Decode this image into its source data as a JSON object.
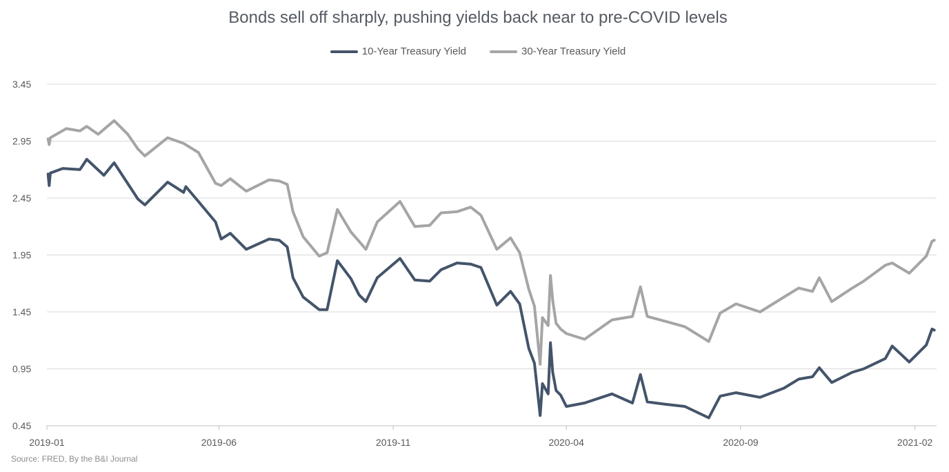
{
  "source_note": "Source: FRED, By the B&I Journal",
  "chart_data": {
    "type": "line",
    "title": "Bonds sell off sharply, pushing yields back near to pre-COVID levels",
    "xlabel": "",
    "ylabel": "",
    "legend_position": "top-center",
    "grid": true,
    "ylim": [
      0.45,
      3.45
    ],
    "yticks": [
      "3.45",
      "2.95",
      "2.45",
      "1.95",
      "1.45",
      "0.95",
      "0.45"
    ],
    "xlim": [
      "2019-01",
      "2021-02"
    ],
    "xticks": [
      "2019-01",
      "2019-06",
      "2019-11",
      "2020-04",
      "2020-09",
      "2021-02"
    ],
    "series": [
      {
        "name": "10-Year Treasury Yield",
        "color": "#44546a",
        "points": [
          [
            "2019-01-02",
            2.66
          ],
          [
            "2019-01-03",
            2.56
          ],
          [
            "2019-01-04",
            2.67
          ],
          [
            "2019-01-15",
            2.71
          ],
          [
            "2019-01-30",
            2.7
          ],
          [
            "2019-02-05",
            2.79
          ],
          [
            "2019-02-20",
            2.65
          ],
          [
            "2019-03-01",
            2.76
          ],
          [
            "2019-03-22",
            2.44
          ],
          [
            "2019-03-28",
            2.39
          ],
          [
            "2019-04-17",
            2.59
          ],
          [
            "2019-05-01",
            2.5
          ],
          [
            "2019-05-03",
            2.55
          ],
          [
            "2019-05-14",
            2.42
          ],
          [
            "2019-05-29",
            2.24
          ],
          [
            "2019-06-03",
            2.09
          ],
          [
            "2019-06-11",
            2.14
          ],
          [
            "2019-06-25",
            2.0
          ],
          [
            "2019-07-15",
            2.09
          ],
          [
            "2019-07-24",
            2.08
          ],
          [
            "2019-07-31",
            2.02
          ],
          [
            "2019-08-05",
            1.75
          ],
          [
            "2019-08-14",
            1.58
          ],
          [
            "2019-08-28",
            1.47
          ],
          [
            "2019-09-04",
            1.47
          ],
          [
            "2019-09-13",
            1.9
          ],
          [
            "2019-09-25",
            1.74
          ],
          [
            "2019-10-02",
            1.6
          ],
          [
            "2019-10-08",
            1.54
          ],
          [
            "2019-10-18",
            1.75
          ],
          [
            "2019-11-07",
            1.92
          ],
          [
            "2019-11-20",
            1.73
          ],
          [
            "2019-12-03",
            1.72
          ],
          [
            "2019-12-13",
            1.82
          ],
          [
            "2019-12-27",
            1.88
          ],
          [
            "2020-01-08",
            1.87
          ],
          [
            "2020-01-17",
            1.84
          ],
          [
            "2020-01-31",
            1.51
          ],
          [
            "2020-02-12",
            1.63
          ],
          [
            "2020-02-20",
            1.52
          ],
          [
            "2020-02-28",
            1.13
          ],
          [
            "2020-03-04",
            1.0
          ],
          [
            "2020-03-09",
            0.54
          ],
          [
            "2020-03-11",
            0.82
          ],
          [
            "2020-03-16",
            0.73
          ],
          [
            "2020-03-18",
            1.18
          ],
          [
            "2020-03-20",
            0.92
          ],
          [
            "2020-03-23",
            0.76
          ],
          [
            "2020-03-27",
            0.72
          ],
          [
            "2020-04-01",
            0.62
          ],
          [
            "2020-04-17",
            0.65
          ],
          [
            "2020-05-11",
            0.73
          ],
          [
            "2020-05-29",
            0.65
          ],
          [
            "2020-06-05",
            0.9
          ],
          [
            "2020-06-11",
            0.66
          ],
          [
            "2020-06-26",
            0.64
          ],
          [
            "2020-07-14",
            0.62
          ],
          [
            "2020-08-04",
            0.52
          ],
          [
            "2020-08-14",
            0.71
          ],
          [
            "2020-08-28",
            0.74
          ],
          [
            "2020-09-18",
            0.7
          ],
          [
            "2020-10-09",
            0.78
          ],
          [
            "2020-10-22",
            0.86
          ],
          [
            "2020-11-03",
            0.88
          ],
          [
            "2020-11-09",
            0.96
          ],
          [
            "2020-11-20",
            0.83
          ],
          [
            "2020-12-08",
            0.92
          ],
          [
            "2020-12-18",
            0.95
          ],
          [
            "2021-01-06",
            1.04
          ],
          [
            "2021-01-12",
            1.15
          ],
          [
            "2021-01-27",
            1.01
          ],
          [
            "2021-02-11",
            1.16
          ],
          [
            "2021-02-16",
            1.3
          ],
          [
            "2021-02-18",
            1.29
          ]
        ]
      },
      {
        "name": "30-Year Treasury Yield",
        "color": "#a5a5a5",
        "points": [
          [
            "2019-01-02",
            2.97
          ],
          [
            "2019-01-03",
            2.92
          ],
          [
            "2019-01-04",
            2.98
          ],
          [
            "2019-01-18",
            3.06
          ],
          [
            "2019-01-30",
            3.04
          ],
          [
            "2019-02-05",
            3.08
          ],
          [
            "2019-02-15",
            3.01
          ],
          [
            "2019-03-01",
            3.13
          ],
          [
            "2019-03-13",
            3.01
          ],
          [
            "2019-03-22",
            2.88
          ],
          [
            "2019-03-28",
            2.82
          ],
          [
            "2019-04-17",
            2.98
          ],
          [
            "2019-05-01",
            2.93
          ],
          [
            "2019-05-14",
            2.85
          ],
          [
            "2019-05-29",
            2.58
          ],
          [
            "2019-06-03",
            2.56
          ],
          [
            "2019-06-11",
            2.62
          ],
          [
            "2019-06-25",
            2.51
          ],
          [
            "2019-07-15",
            2.61
          ],
          [
            "2019-07-24",
            2.6
          ],
          [
            "2019-07-31",
            2.57
          ],
          [
            "2019-08-05",
            2.33
          ],
          [
            "2019-08-14",
            2.11
          ],
          [
            "2019-08-28",
            1.94
          ],
          [
            "2019-09-04",
            1.97
          ],
          [
            "2019-09-13",
            2.35
          ],
          [
            "2019-09-25",
            2.15
          ],
          [
            "2019-10-02",
            2.07
          ],
          [
            "2019-10-08",
            2.0
          ],
          [
            "2019-10-18",
            2.24
          ],
          [
            "2019-11-07",
            2.42
          ],
          [
            "2019-11-20",
            2.2
          ],
          [
            "2019-12-03",
            2.21
          ],
          [
            "2019-12-13",
            2.32
          ],
          [
            "2019-12-27",
            2.33
          ],
          [
            "2020-01-08",
            2.37
          ],
          [
            "2020-01-17",
            2.3
          ],
          [
            "2020-01-31",
            2.0
          ],
          [
            "2020-02-12",
            2.1
          ],
          [
            "2020-02-20",
            1.97
          ],
          [
            "2020-02-28",
            1.65
          ],
          [
            "2020-03-04",
            1.5
          ],
          [
            "2020-03-09",
            0.99
          ],
          [
            "2020-03-11",
            1.4
          ],
          [
            "2020-03-16",
            1.33
          ],
          [
            "2020-03-18",
            1.77
          ],
          [
            "2020-03-20",
            1.55
          ],
          [
            "2020-03-23",
            1.35
          ],
          [
            "2020-03-27",
            1.3
          ],
          [
            "2020-04-01",
            1.26
          ],
          [
            "2020-04-17",
            1.21
          ],
          [
            "2020-05-11",
            1.38
          ],
          [
            "2020-05-29",
            1.41
          ],
          [
            "2020-06-05",
            1.67
          ],
          [
            "2020-06-11",
            1.41
          ],
          [
            "2020-06-26",
            1.37
          ],
          [
            "2020-07-14",
            1.32
          ],
          [
            "2020-08-04",
            1.19
          ],
          [
            "2020-08-14",
            1.44
          ],
          [
            "2020-08-28",
            1.52
          ],
          [
            "2020-09-18",
            1.45
          ],
          [
            "2020-10-09",
            1.58
          ],
          [
            "2020-10-22",
            1.66
          ],
          [
            "2020-11-03",
            1.63
          ],
          [
            "2020-11-09",
            1.75
          ],
          [
            "2020-11-20",
            1.54
          ],
          [
            "2020-12-08",
            1.66
          ],
          [
            "2020-12-18",
            1.72
          ],
          [
            "2021-01-06",
            1.86
          ],
          [
            "2021-01-12",
            1.88
          ],
          [
            "2021-01-27",
            1.79
          ],
          [
            "2021-02-11",
            1.94
          ],
          [
            "2021-02-16",
            2.07
          ],
          [
            "2021-02-18",
            2.08
          ]
        ]
      }
    ]
  }
}
